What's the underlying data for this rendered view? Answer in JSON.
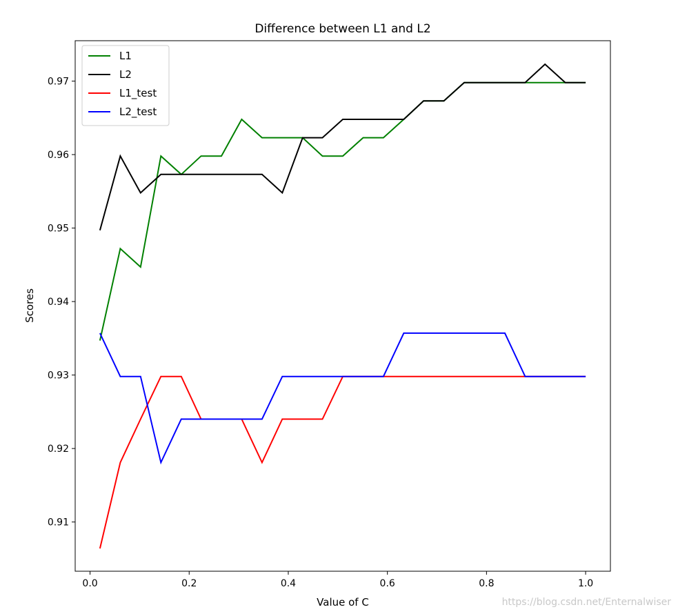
{
  "chart_data": {
    "type": "line",
    "title": "Difference between L1 and L2",
    "xlabel": "Value of C",
    "ylabel": "Scores",
    "xlim": [
      -0.03,
      1.05
    ],
    "ylim": [
      0.9033,
      0.9755
    ],
    "xticks": [
      0.0,
      0.2,
      0.4,
      0.6,
      0.8,
      1.0
    ],
    "xtick_labels": [
      "0.0",
      "0.2",
      "0.4",
      "0.6",
      "0.8",
      "1.0"
    ],
    "yticks": [
      0.91,
      0.92,
      0.93,
      0.94,
      0.95,
      0.96,
      0.97
    ],
    "ytick_labels": [
      "0.91",
      "0.92",
      "0.93",
      "0.94",
      "0.95",
      "0.96",
      "0.97"
    ],
    "grid": false,
    "legend_position": "top-left",
    "x": [
      0.02,
      0.061,
      0.102,
      0.143,
      0.184,
      0.224,
      0.265,
      0.306,
      0.347,
      0.388,
      0.429,
      0.469,
      0.51,
      0.551,
      0.592,
      0.633,
      0.673,
      0.714,
      0.755,
      0.796,
      0.837,
      0.878,
      0.918,
      0.959,
      1.0
    ],
    "series": [
      {
        "name": "L1",
        "color": "#008000",
        "values": [
          0.9347,
          0.9472,
          0.9447,
          0.9598,
          0.9573,
          0.9598,
          0.9598,
          0.9648,
          0.9623,
          0.9623,
          0.9623,
          0.9598,
          0.9598,
          0.9623,
          0.9623,
          0.9648,
          0.9673,
          0.9673,
          0.9698,
          0.9698,
          0.9698,
          0.9698,
          0.9698,
          0.9698,
          0.9698
        ]
      },
      {
        "name": "L2",
        "color": "#000000",
        "values": [
          0.9497,
          0.9598,
          0.9548,
          0.9573,
          0.9573,
          0.9573,
          0.9573,
          0.9573,
          0.9573,
          0.9548,
          0.9623,
          0.9623,
          0.9648,
          0.9648,
          0.9648,
          0.9648,
          0.9673,
          0.9673,
          0.9698,
          0.9698,
          0.9698,
          0.9698,
          0.9723,
          0.9698,
          0.9698
        ]
      },
      {
        "name": "L1_test",
        "color": "#ff0000",
        "values": [
          0.9064,
          0.9181,
          0.924,
          0.9298,
          0.9298,
          0.924,
          0.924,
          0.924,
          0.9181,
          0.924,
          0.924,
          0.924,
          0.9298,
          0.9298,
          0.9298,
          0.9298,
          0.9298,
          0.9298,
          0.9298,
          0.9298,
          0.9298,
          0.9298,
          0.9298,
          0.9298,
          0.9298
        ]
      },
      {
        "name": "L2_test",
        "color": "#0000ff",
        "values": [
          0.9357,
          0.9298,
          0.9298,
          0.9181,
          0.924,
          0.924,
          0.924,
          0.924,
          0.924,
          0.9298,
          0.9298,
          0.9298,
          0.9298,
          0.9298,
          0.9298,
          0.9357,
          0.9357,
          0.9357,
          0.9357,
          0.9357,
          0.9357,
          0.9298,
          0.9298,
          0.9298,
          0.9298
        ]
      }
    ]
  },
  "watermark": "https://blog.csdn.net/Enternalwiser"
}
